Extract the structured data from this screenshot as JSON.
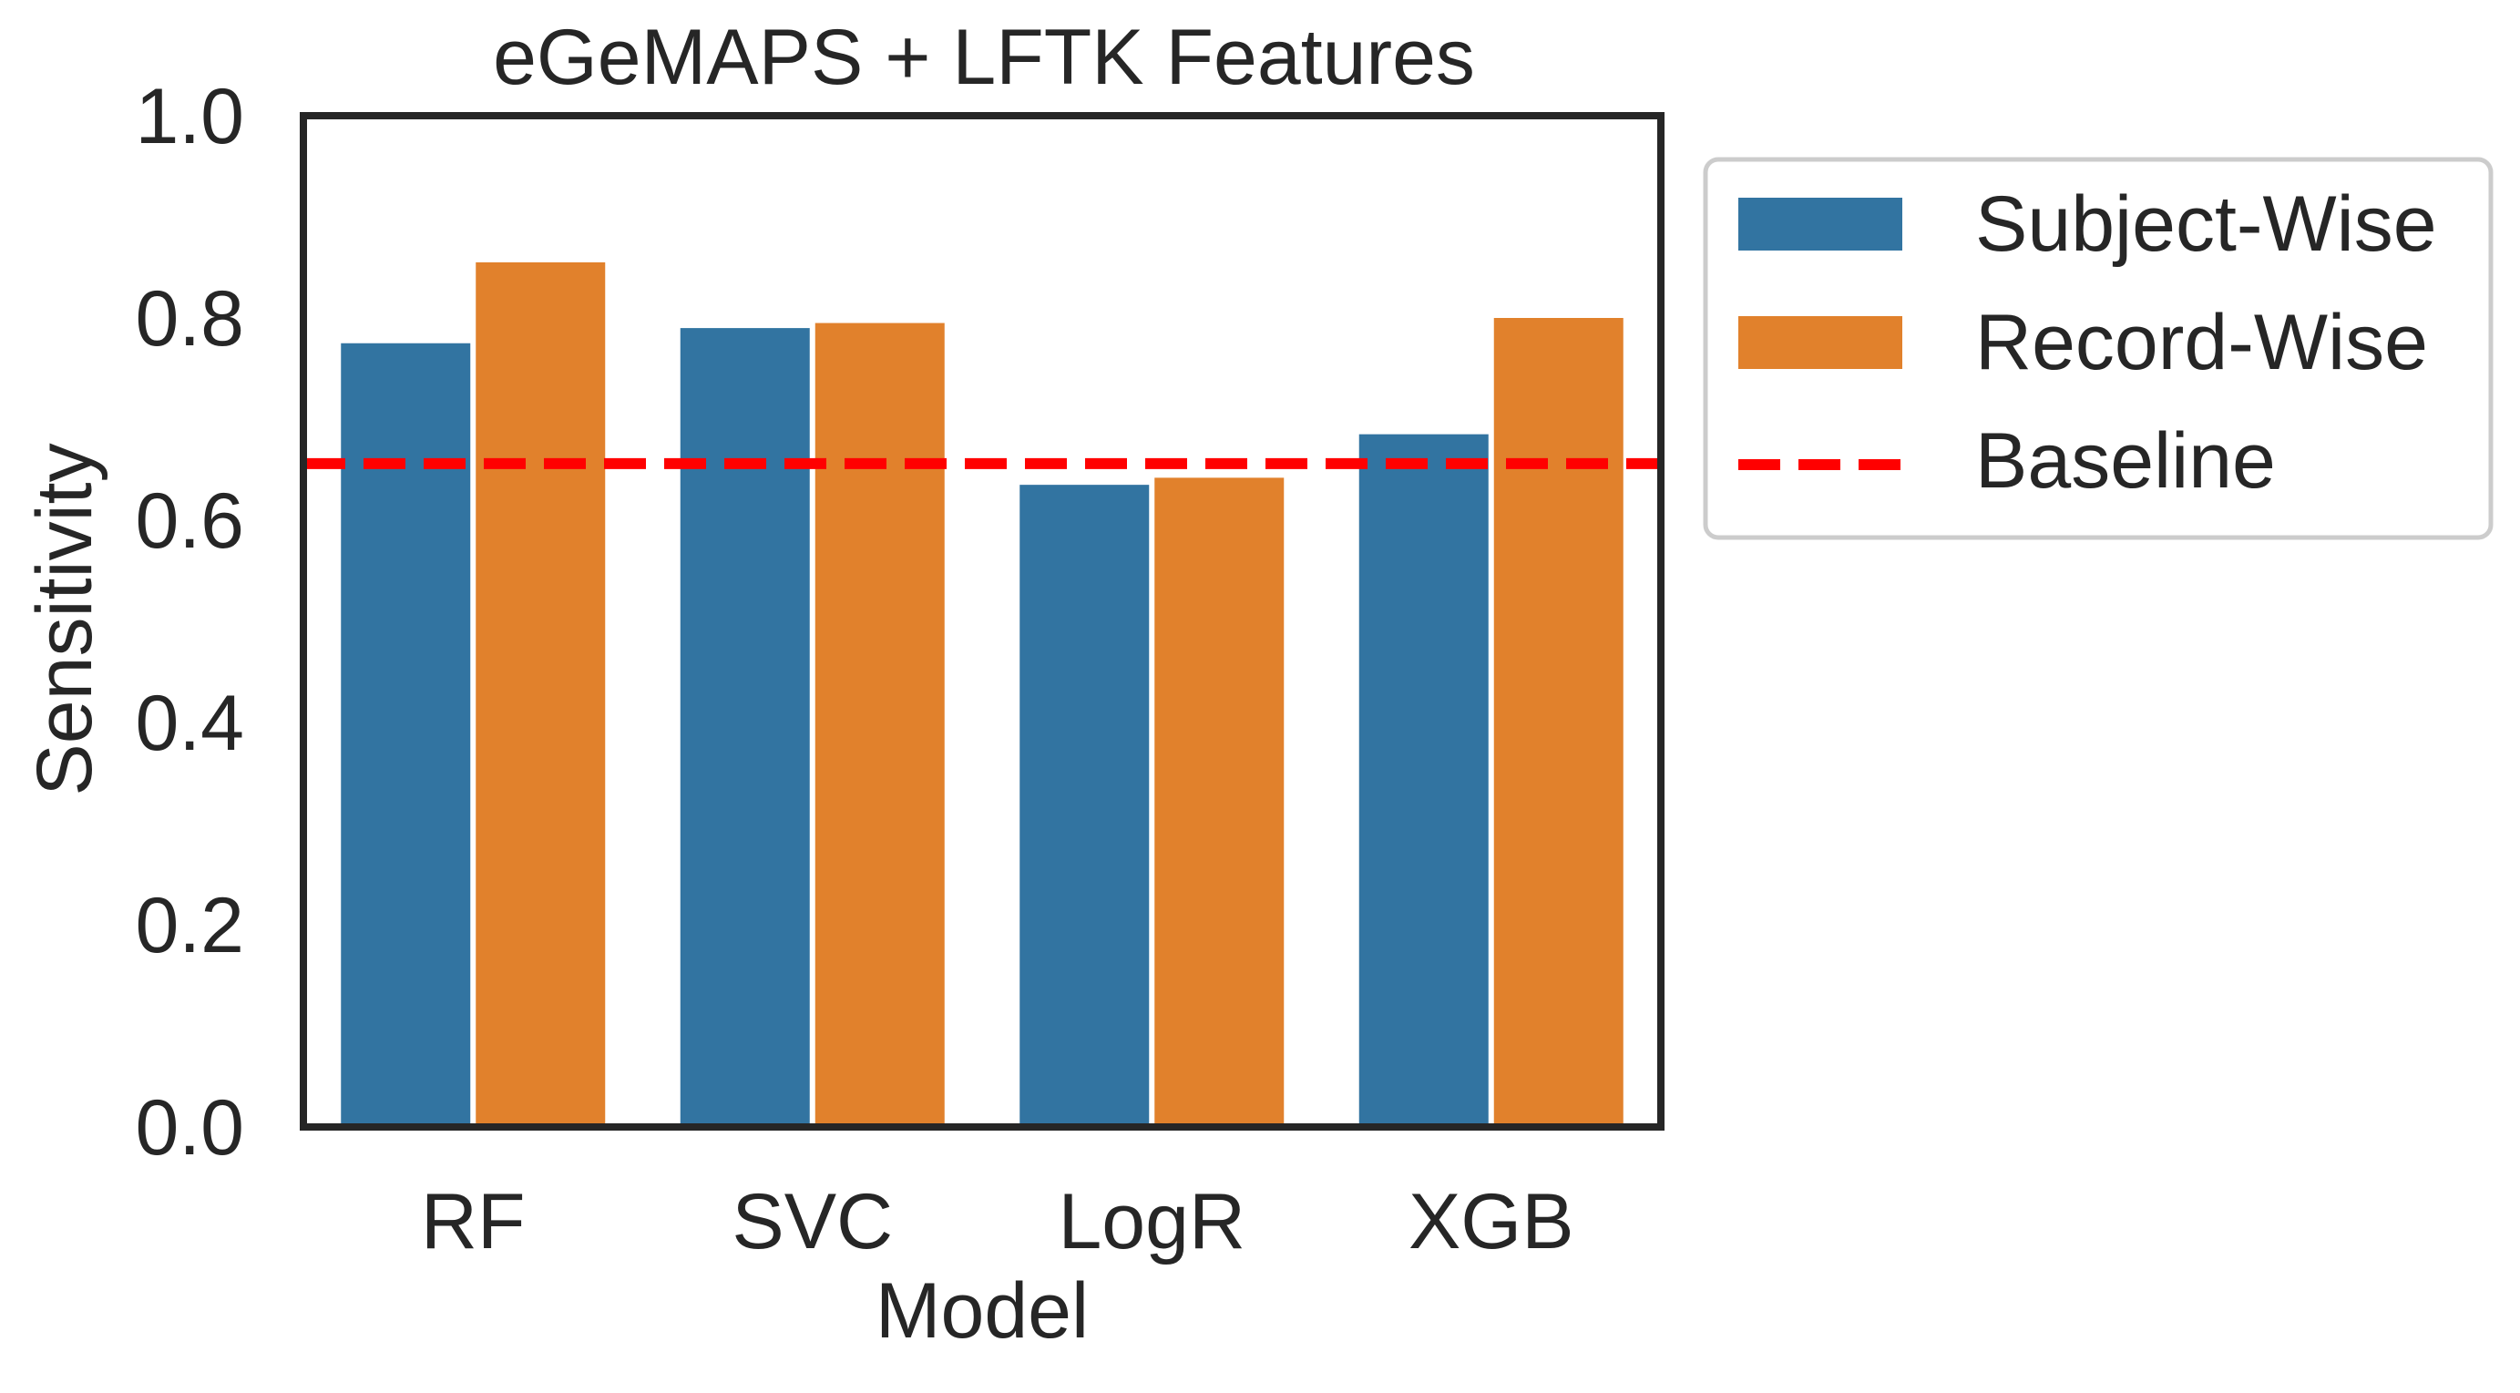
{
  "chart_data": {
    "type": "bar",
    "title": "eGeMAPS + LFTK Features",
    "xlabel": "Model",
    "ylabel": "Sensitivity",
    "categories": [
      "RF",
      "SVC",
      "LogR",
      "XGB"
    ],
    "series": [
      {
        "name": "Subject-Wise",
        "color": "#3274a1",
        "values": [
          0.775,
          0.79,
          0.635,
          0.685
        ]
      },
      {
        "name": "Record-Wise",
        "color": "#e1812c",
        "values": [
          0.855,
          0.795,
          0.642,
          0.8
        ]
      }
    ],
    "baseline": {
      "name": "Baseline",
      "value": 0.656,
      "color": "#ff0000",
      "style": "dashed"
    },
    "ylim": [
      0,
      1.0
    ],
    "yticks": [
      "0.0",
      "0.2",
      "0.4",
      "0.6",
      "0.8",
      "1.0"
    ],
    "grid": false,
    "legend_position": "outside-right"
  }
}
